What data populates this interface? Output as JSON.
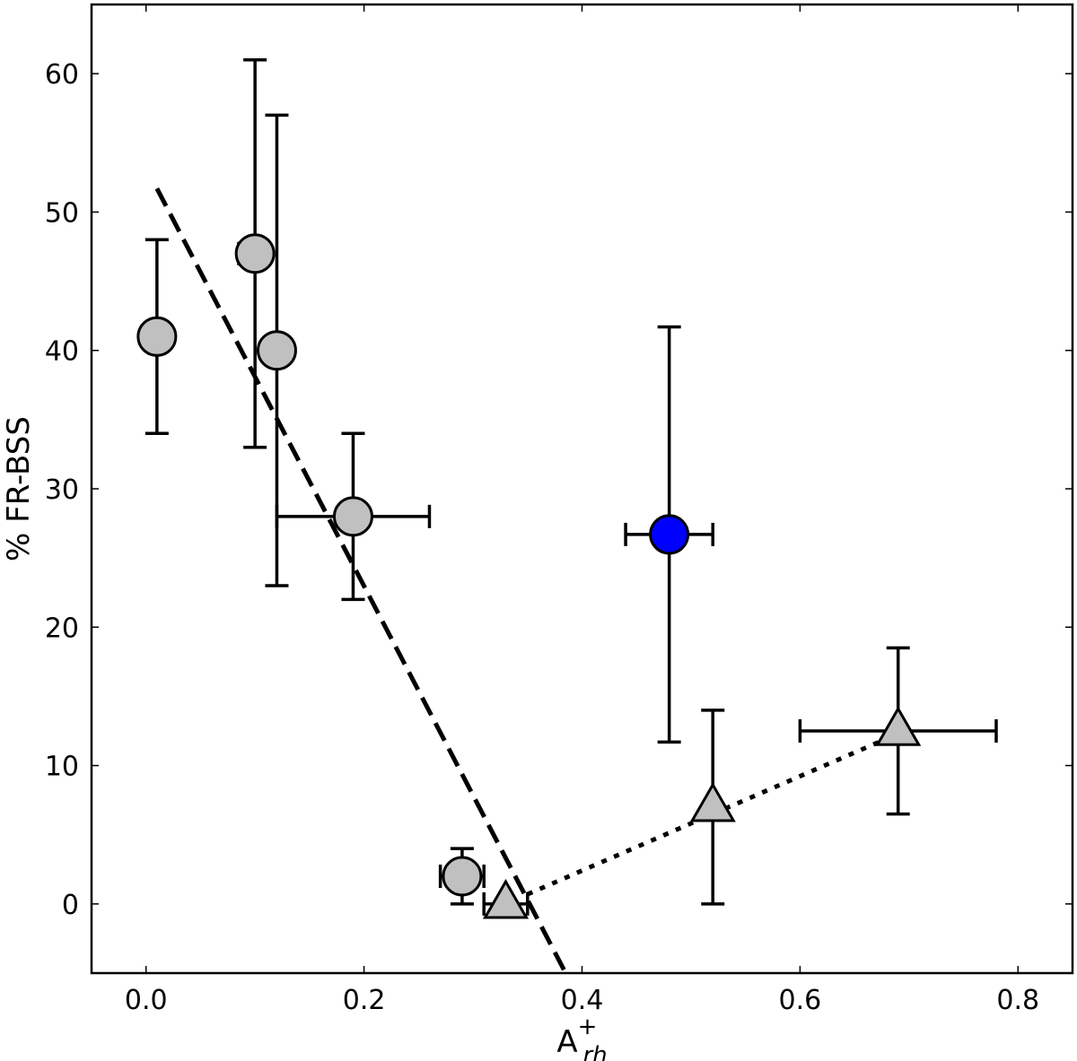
{
  "chart_data": {
    "type": "scatter",
    "title": "",
    "xlabel": "A",
    "xlabel_superscript": "+",
    "xlabel_subscript": "rh",
    "ylabel": "% FR-BSS",
    "xlim": [
      -0.05,
      0.85
    ],
    "ylim": [
      -5,
      65
    ],
    "x_ticks": [
      "0.0",
      "0.2",
      "0.4",
      "0.6",
      "0.8"
    ],
    "y_ticks": [
      "0",
      "10",
      "20",
      "30",
      "40",
      "50",
      "60"
    ],
    "grid": false,
    "legend": false,
    "series": [
      {
        "marker": "circle",
        "color": "#c0c0c0",
        "points": [
          {
            "x": 0.01,
            "y": 41,
            "y_lo": 34,
            "y_hi": 48
          },
          {
            "x": 0.1,
            "y": 47,
            "x_lo": 0.085,
            "x_hi": 0.1,
            "y_lo": 33,
            "y_hi": 61
          },
          {
            "x": 0.12,
            "y": 40,
            "y_lo": 23,
            "y_hi": 57
          },
          {
            "x": 0.19,
            "y": 28,
            "x_lo": 0.12,
            "x_hi": 0.26,
            "y_lo": 22,
            "y_hi": 34
          },
          {
            "x": 0.29,
            "y": 2,
            "x_lo": 0.27,
            "x_hi": 0.31,
            "y_lo": 0,
            "y_hi": 4
          }
        ]
      },
      {
        "marker": "circle",
        "color": "#0000ff",
        "points": [
          {
            "x": 0.48,
            "y": 26.7,
            "x_lo": 0.44,
            "x_hi": 0.52,
            "y_lo": 11.7,
            "y_hi": 41.7
          }
        ]
      },
      {
        "marker": "triangle",
        "color": "#c0c0c0",
        "points": [
          {
            "x": 0.33,
            "y": 0,
            "x_lo": 0.31,
            "x_hi": 0.35
          },
          {
            "x": 0.52,
            "y": 7,
            "y_lo": 0,
            "y_hi": 14
          },
          {
            "x": 0.69,
            "y": 12.5,
            "x_lo": 0.6,
            "x_hi": 0.78,
            "y_lo": 6.5,
            "y_hi": 18.5
          }
        ]
      }
    ],
    "lines": [
      {
        "style": "dashed",
        "x": [
          0.01,
          0.385
        ],
        "y": [
          51.7,
          -5
        ]
      },
      {
        "style": "dotted",
        "x": [
          0.35,
          0.69
        ],
        "y": [
          0.7,
          12.3
        ]
      }
    ]
  }
}
